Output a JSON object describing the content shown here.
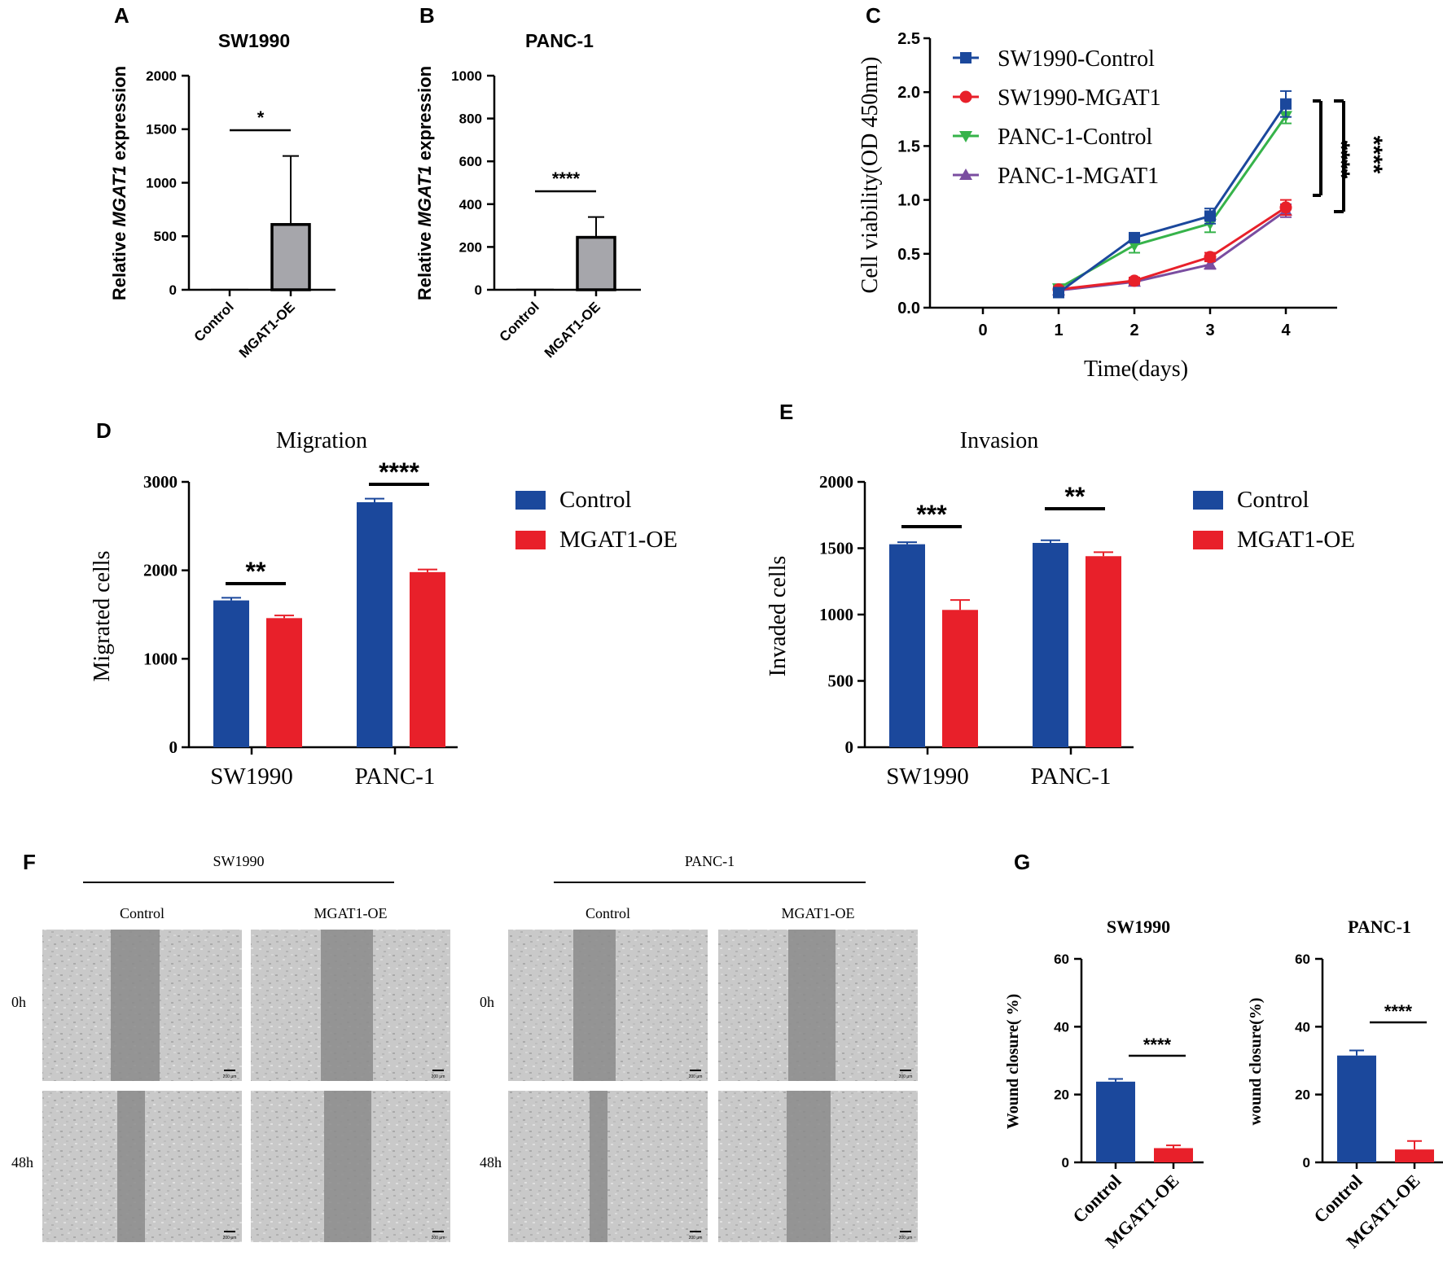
{
  "colors": {
    "axis": "#000000",
    "blue": "#1b489c",
    "red": "#e8202a",
    "green": "#36b34a",
    "purple": "#7a4da0",
    "gray": "#a6a6ab",
    "micro_bg": "#c9c9c9",
    "micro_wound": "#8b8b8b"
  },
  "panel_labels": [
    "A",
    "B",
    "C",
    "D",
    "E",
    "F",
    "G"
  ],
  "chart_data": [
    {
      "id": "A",
      "type": "bar",
      "title": "SW1990",
      "ylabel_prefix": "Relative ",
      "ylabel_gene": "MGAT1",
      "ylabel_suffix": " expression",
      "categories": [
        "Control",
        "MGAT1-OE"
      ],
      "values": [
        1,
        610
      ],
      "errors": [
        0,
        640
      ],
      "ylim": [
        0,
        2000
      ],
      "yticks": [
        0,
        500,
        1000,
        1500,
        2000
      ],
      "significance": "*"
    },
    {
      "id": "B",
      "type": "bar",
      "title": "PANC-1",
      "ylabel_prefix": "Relative ",
      "ylabel_gene": "MGAT1",
      "ylabel_suffix": " expression",
      "categories": [
        "Control",
        "MGAT1-OE"
      ],
      "values": [
        1,
        245
      ],
      "errors": [
        0,
        95
      ],
      "ylim": [
        0,
        1000
      ],
      "yticks": [
        0,
        200,
        400,
        600,
        800,
        1000
      ],
      "significance": "****"
    },
    {
      "id": "C",
      "type": "line",
      "xlabel": "Time(days)",
      "ylabel": "Cell viability(OD 450nm)",
      "x": [
        1,
        2,
        3,
        4
      ],
      "xticks": [
        0,
        1,
        2,
        3,
        4
      ],
      "ylim": [
        0,
        2.5
      ],
      "yticks": [
        "0.0",
        "0.5",
        "1.0",
        "1.5",
        "2.0",
        "2.5"
      ],
      "series": [
        {
          "name": "SW1990-Control",
          "values": [
            0.14,
            0.65,
            0.85,
            1.89
          ],
          "errors": [
            0.03,
            0.03,
            0.07,
            0.12
          ]
        },
        {
          "name": "SW1990-MGAT1",
          "values": [
            0.17,
            0.25,
            0.47,
            0.93
          ],
          "errors": [
            0.02,
            0.03,
            0.04,
            0.07
          ]
        },
        {
          "name": "PANC-1-Control",
          "values": [
            0.18,
            0.58,
            0.78,
            1.78
          ],
          "errors": [
            0.02,
            0.07,
            0.08,
            0.07
          ]
        },
        {
          "name": "PANC-1-MGAT1",
          "values": [
            0.16,
            0.24,
            0.4,
            0.9
          ],
          "errors": [
            0.02,
            0.03,
            0.04,
            0.06
          ]
        }
      ],
      "significance": [
        "****",
        "****"
      ]
    },
    {
      "id": "D",
      "type": "bar",
      "title": "Migration",
      "ylabel": "Migrated cells",
      "categories": [
        "SW1990",
        "PANC-1"
      ],
      "series": [
        {
          "name": "Control",
          "values": [
            1660,
            2770
          ],
          "errors": [
            30,
            40
          ]
        },
        {
          "name": "MGAT1-OE",
          "values": [
            1460,
            1980
          ],
          "errors": [
            30,
            30
          ]
        }
      ],
      "ylim": [
        0,
        3000
      ],
      "yticks": [
        0,
        1000,
        2000,
        3000
      ],
      "significance": [
        "**",
        "****"
      ]
    },
    {
      "id": "E",
      "type": "bar",
      "title": "Invasion",
      "ylabel": "Invaded cells",
      "categories": [
        "SW1990",
        "PANC-1"
      ],
      "series": [
        {
          "name": "Control",
          "values": [
            1530,
            1540
          ],
          "errors": [
            15,
            20
          ]
        },
        {
          "name": "MGAT1-OE",
          "values": [
            1035,
            1440
          ],
          "errors": [
            75,
            30
          ]
        }
      ],
      "ylim": [
        0,
        2000
      ],
      "yticks": [
        0,
        500,
        1000,
        1500,
        2000
      ],
      "significance": [
        "***",
        "**"
      ]
    },
    {
      "id": "G1",
      "type": "bar",
      "title": "SW1990",
      "ylabel": "Wound closure(  %)",
      "categories": [
        "Control",
        "MGAT1-OE"
      ],
      "values": [
        23.8,
        4.2
      ],
      "errors": [
        0.8,
        0.8
      ],
      "ylim": [
        0,
        60
      ],
      "yticks": [
        0,
        20,
        40,
        60
      ],
      "significance": "****"
    },
    {
      "id": "G2",
      "type": "bar",
      "title": "PANC-1",
      "ylabel": "wound closure(%)",
      "categories": [
        "Control",
        "MGAT1-OE"
      ],
      "values": [
        31.5,
        3.8
      ],
      "errors": [
        1.5,
        2.5
      ],
      "ylim": [
        0,
        60
      ],
      "yticks": [
        0,
        20,
        40,
        60
      ],
      "significance": "****"
    }
  ],
  "panel_f": {
    "groups": [
      "SW1990",
      "PANC-1"
    ],
    "conditions": [
      "Control",
      "MGAT1-OE"
    ],
    "timepoints": [
      "0h",
      "48h"
    ],
    "scale_bar": "200 μm"
  }
}
